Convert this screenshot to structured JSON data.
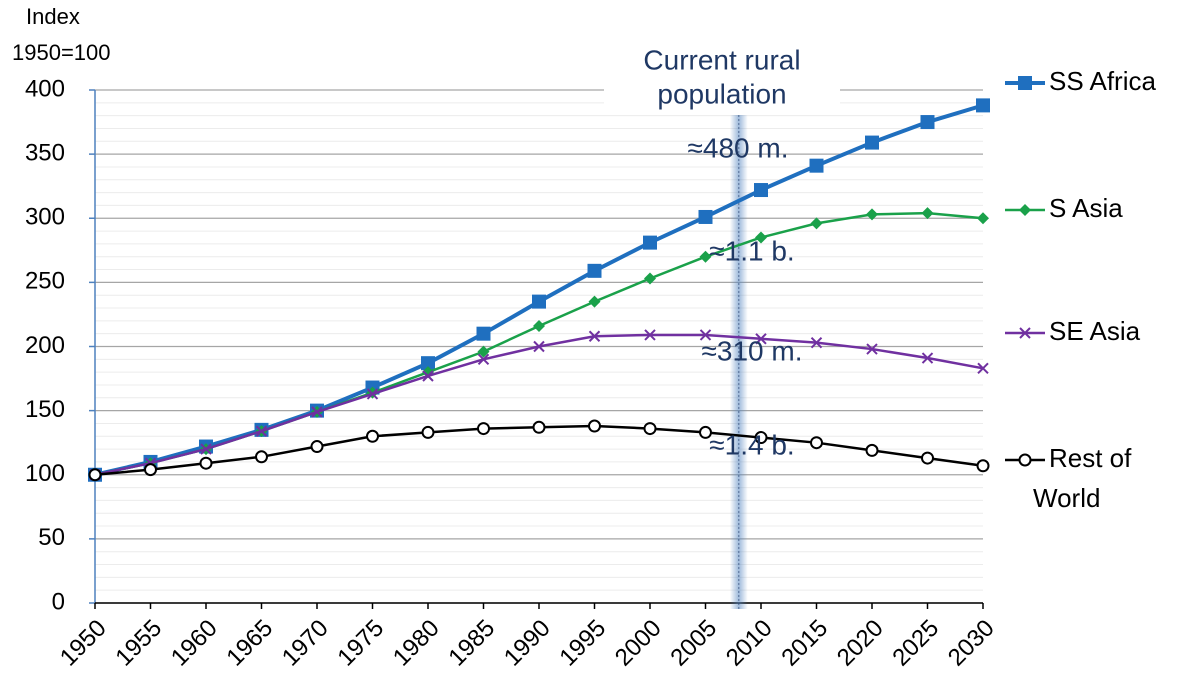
{
  "chart_data": {
    "type": "line",
    "ylabel": [
      "Index",
      "1950=100"
    ],
    "x": [
      1950,
      1955,
      1960,
      1965,
      1970,
      1975,
      1980,
      1985,
      1990,
      1995,
      2000,
      2005,
      2010,
      2015,
      2020,
      2025,
      2030
    ],
    "xlim": [
      1950,
      2030
    ],
    "xticks": [
      1950,
      1955,
      1960,
      1965,
      1970,
      1975,
      1980,
      1985,
      1990,
      1995,
      2000,
      2005,
      2010,
      2015,
      2020,
      2025,
      2030
    ],
    "ylim": [
      0,
      400
    ],
    "yticks": [
      0,
      50,
      100,
      150,
      200,
      250,
      300,
      350,
      400
    ],
    "grid": true,
    "highlight_x": 2008,
    "series": [
      {
        "name": "SS Africa",
        "color": "#1f6fbf",
        "marker": "square",
        "values": [
          100,
          110,
          122,
          135,
          150,
          168,
          187,
          210,
          235,
          259,
          281,
          301,
          322,
          341,
          359,
          375,
          388
        ]
      },
      {
        "name": "S Asia",
        "color": "#1aa14a",
        "marker": "diamond",
        "values": [
          100,
          109,
          120,
          134,
          149,
          164,
          180,
          196,
          216,
          235,
          253,
          270,
          285,
          296,
          303,
          304,
          300
        ]
      },
      {
        "name": "SE Asia",
        "color": "#7030a0",
        "marker": "cross",
        "values": [
          100,
          109,
          120,
          134,
          149,
          163,
          177,
          190,
          200,
          208,
          209,
          209,
          206,
          203,
          198,
          191,
          183
        ]
      },
      {
        "name": "Rest of World",
        "color": "#000000",
        "marker": "circle",
        "values": [
          100,
          104,
          109,
          114,
          122,
          130,
          133,
          136,
          137,
          138,
          136,
          133,
          129,
          125,
          119,
          113,
          107
        ]
      }
    ],
    "annotations": [
      "Current rural",
      "population",
      "≈480 m.",
      "≈1.1 b.",
      "≈310 m.",
      "≈1.4 b."
    ],
    "annotation_color": "#1f3864"
  }
}
